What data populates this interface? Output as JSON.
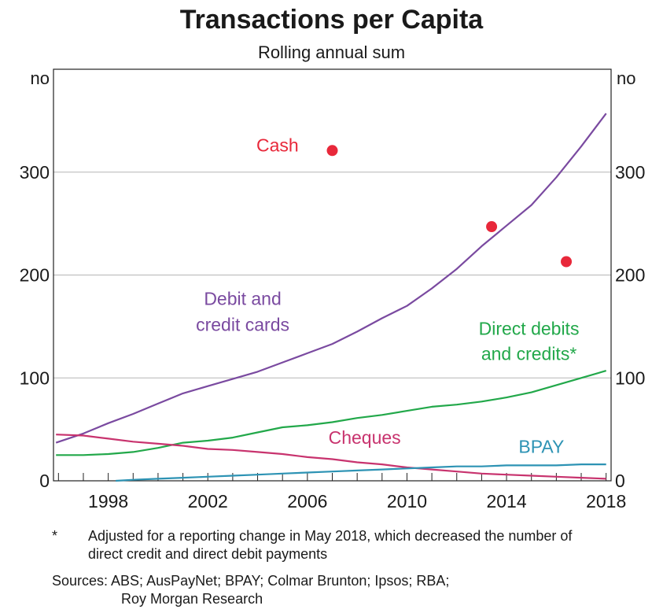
{
  "title": "Transactions per Capita",
  "subtitle": "Rolling annual sum",
  "footnote": {
    "marker": "*",
    "text": "Adjusted for a reporting change in May 2018, which decreased the number of direct credit and direct debit payments"
  },
  "sources": {
    "line1": "Sources: ABS; AusPayNet; BPAY; Colmar Brunton; Ipsos; RBA;",
    "line2": "Roy Morgan Research"
  },
  "chart_data": {
    "type": "line",
    "title": "Transactions per Capita",
    "subtitle": "Rolling annual sum",
    "y_unit_label_left": "no",
    "y_unit_label_right": "no",
    "ylim": [
      0,
      400
    ],
    "y_ticks": [
      0,
      100,
      200,
      300
    ],
    "xlim": [
      1995.8,
      2018.2
    ],
    "x_ticks": [
      1998,
      2002,
      2006,
      2010,
      2014,
      2018
    ],
    "grid": true,
    "series": [
      {
        "name": "Debit and credit cards",
        "label_lines": [
          "Debit and",
          "credit cards"
        ],
        "color": "#7a4aa0",
        "x": [
          1995.9,
          1997,
          1998,
          1999,
          2000,
          2001,
          2002,
          2003,
          2004,
          2005,
          2006,
          2007,
          2008,
          2009,
          2010,
          2011,
          2012,
          2013,
          2014,
          2015,
          2016,
          2017,
          2018
        ],
        "y": [
          37,
          46,
          56,
          65,
          75,
          85,
          92,
          99,
          106,
          115,
          124,
          133,
          145,
          158,
          170,
          187,
          206,
          228,
          248,
          268,
          295,
          325,
          357
        ]
      },
      {
        "name": "Direct debits and credits*",
        "label_lines": [
          "Direct debits",
          "and credits*"
        ],
        "color": "#22a84a",
        "x": [
          1995.9,
          1997,
          1998,
          1999,
          2000,
          2001,
          2002,
          2003,
          2004,
          2005,
          2006,
          2007,
          2008,
          2009,
          2010,
          2011,
          2012,
          2013,
          2014,
          2015,
          2016,
          2017,
          2018
        ],
        "y": [
          25,
          25,
          26,
          28,
          32,
          37,
          39,
          42,
          47,
          52,
          54,
          57,
          61,
          64,
          68,
          72,
          74,
          77,
          81,
          86,
          93,
          100,
          107
        ]
      },
      {
        "name": "Cheques",
        "label_lines": [
          "Cheques"
        ],
        "color": "#c8336e",
        "x": [
          1995.9,
          1997,
          1998,
          1999,
          2000,
          2001,
          2002,
          2003,
          2004,
          2005,
          2006,
          2007,
          2008,
          2009,
          2010,
          2011,
          2012,
          2013,
          2014,
          2015,
          2016,
          2017,
          2018
        ],
        "y": [
          45,
          44,
          41,
          38,
          36,
          34,
          31,
          30,
          28,
          26,
          23,
          21,
          18,
          16,
          13,
          11,
          9,
          7,
          6,
          5,
          4,
          3,
          2
        ]
      },
      {
        "name": "BPAY",
        "label_lines": [
          "BPAY"
        ],
        "color": "#2d93b4",
        "x": [
          1998.3,
          1999,
          2000,
          2001,
          2002,
          2003,
          2004,
          2005,
          2006,
          2007,
          2008,
          2009,
          2010,
          2011,
          2012,
          2013,
          2014,
          2015,
          2016,
          2017,
          2018
        ],
        "y": [
          0,
          1,
          2,
          3,
          4,
          5,
          6,
          7,
          8,
          9,
          10,
          11,
          12,
          13,
          14,
          14,
          15,
          15,
          15,
          16,
          16
        ]
      },
      {
        "name": "Cash",
        "label_lines": [
          "Cash"
        ],
        "color": "#e8283a",
        "marker": "point",
        "x": [
          2007,
          2013.4,
          2016.4
        ],
        "y": [
          321,
          247,
          213
        ]
      }
    ]
  }
}
